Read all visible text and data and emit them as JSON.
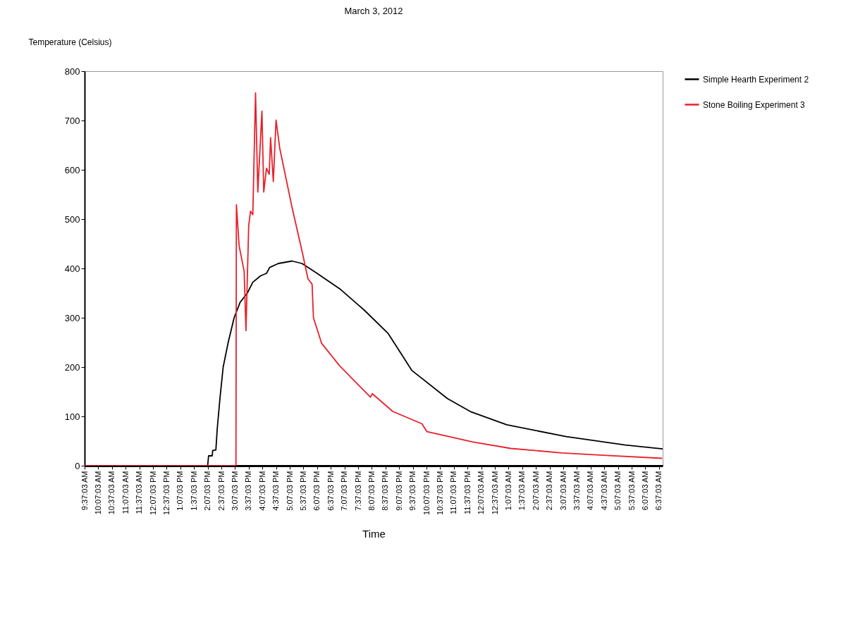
{
  "chart_data": {
    "type": "line",
    "title": "March 3, 2012",
    "xlabel": "Time",
    "ylabel": "Temperature (Celsius)",
    "xlim": [
      "2012-03-03T09:37:03",
      "2012-03-04T06:45"
    ],
    "ylim": [
      0,
      800
    ],
    "yticks": [
      0,
      100,
      200,
      300,
      400,
      500,
      600,
      700,
      800
    ],
    "xticks": [
      {
        "value": "2012-03-03T09:37:03",
        "label": "9:37:03 AM"
      },
      {
        "value": "2012-03-03T10:07:03",
        "label": "10:07:03 AM"
      },
      {
        "value": "2012-03-03T10:37:03",
        "label": "10:37:03 AM"
      },
      {
        "value": "2012-03-03T11:07:03",
        "label": "11:07:03 AM"
      },
      {
        "value": "2012-03-03T11:37:03",
        "label": "11:37:03 AM"
      },
      {
        "value": "2012-03-03T12:07:03",
        "label": "12:07:03 PM"
      },
      {
        "value": "2012-03-03T12:37:03",
        "label": "12:37:03 PM"
      },
      {
        "value": "2012-03-03T13:07:03",
        "label": "1:07:03 PM"
      },
      {
        "value": "2012-03-03T13:37:03",
        "label": "1:37:03 PM"
      },
      {
        "value": "2012-03-03T14:07:03",
        "label": "2:07:03 PM"
      },
      {
        "value": "2012-03-03T14:37:03",
        "label": "2:37:03 PM"
      },
      {
        "value": "2012-03-03T15:07:03",
        "label": "3:07:03 PM"
      },
      {
        "value": "2012-03-03T15:37:03",
        "label": "3:37:03 PM"
      },
      {
        "value": "2012-03-03T16:07:03",
        "label": "4:07:03 PM"
      },
      {
        "value": "2012-03-03T16:37:03",
        "label": "4:37:03 PM"
      },
      {
        "value": "2012-03-03T17:07:03",
        "label": "5:07:03 PM"
      },
      {
        "value": "2012-03-03T17:37:03",
        "label": "5:37:03 PM"
      },
      {
        "value": "2012-03-03T18:07:03",
        "label": "6:07:03 PM"
      },
      {
        "value": "2012-03-03T18:37:03",
        "label": "6:37:03 PM"
      },
      {
        "value": "2012-03-03T19:07:03",
        "label": "7:07:03 PM"
      },
      {
        "value": "2012-03-03T19:37:03",
        "label": "7:37:03 PM"
      },
      {
        "value": "2012-03-03T20:07:03",
        "label": "8:07:03 PM"
      },
      {
        "value": "2012-03-03T20:37:03",
        "label": "8:37:03 PM"
      },
      {
        "value": "2012-03-03T21:07:03",
        "label": "9:07:03 PM"
      },
      {
        "value": "2012-03-03T21:37:03",
        "label": "9:37:03 PM"
      },
      {
        "value": "2012-03-03T22:07:03",
        "label": "10:07:03 PM"
      },
      {
        "value": "2012-03-03T22:37:03",
        "label": "10:37:03 PM"
      },
      {
        "value": "2012-03-03T23:07:03",
        "label": "11:07:03 PM"
      },
      {
        "value": "2012-03-03T23:37:03",
        "label": "11:37:03 PM"
      },
      {
        "value": "2012-03-04T00:07:03",
        "label": "12:07:03 AM"
      },
      {
        "value": "2012-03-04T00:37:03",
        "label": "12:37:03 AM"
      },
      {
        "value": "2012-03-04T01:07:03",
        "label": "1:07:03 AM"
      },
      {
        "value": "2012-03-04T01:37:03",
        "label": "1:37:03 AM"
      },
      {
        "value": "2012-03-04T02:07:03",
        "label": "2:07:03 AM"
      },
      {
        "value": "2012-03-04T02:37:03",
        "label": "2:37:03 AM"
      },
      {
        "value": "2012-03-04T03:07:03",
        "label": "3:07:03 AM"
      },
      {
        "value": "2012-03-04T03:37:03",
        "label": "3:37:03 AM"
      },
      {
        "value": "2012-03-04T04:07:03",
        "label": "4:07:03 AM"
      },
      {
        "value": "2012-03-04T04:37:03",
        "label": "4:37:03 AM"
      },
      {
        "value": "2012-03-04T05:07:03",
        "label": "5:07:03 AM"
      },
      {
        "value": "2012-03-04T05:37:03",
        "label": "5:37:03 AM"
      },
      {
        "value": "2012-03-04T06:07:03",
        "label": "6:07:03 AM"
      },
      {
        "value": "2012-03-04T06:37:03",
        "label": "6:37:03 AM"
      }
    ],
    "legend": "right",
    "series": [
      {
        "name": "Simple Hearth Experiment 2",
        "color": "#000000",
        "x": [
          "2012-03-03T09:37:03",
          "2012-03-03T14:07",
          "2012-03-03T14:09",
          "2012-03-03T14:17",
          "2012-03-03T14:18",
          "2012-03-03T14:25",
          "2012-03-03T14:28",
          "2012-03-03T14:34",
          "2012-03-03T14:41",
          "2012-03-03T14:52",
          "2012-03-03T15:05",
          "2012-03-03T15:18",
          "2012-03-03T15:34",
          "2012-03-03T15:46",
          "2012-03-03T16:03",
          "2012-03-03T16:16",
          "2012-03-03T16:23",
          "2012-03-03T16:42",
          "2012-03-03T17:12",
          "2012-03-03T17:34",
          "2012-03-03T18:07",
          "2012-03-03T18:59",
          "2012-03-03T19:51",
          "2012-03-03T20:43",
          "2012-03-03T21:35",
          "2012-03-03T22:53",
          "2012-03-03T23:45",
          "2012-03-04T01:03",
          "2012-03-04T03:13",
          "2012-03-04T05:23",
          "2012-03-04T06:45"
        ],
        "values": [
          0,
          0,
          20,
          20,
          31,
          32,
          75,
          137,
          200,
          250,
          300,
          331,
          350,
          372,
          385,
          390,
          402,
          410,
          415,
          410,
          390,
          357,
          315,
          268,
          193,
          136,
          109,
          83,
          59,
          42,
          34
        ]
      },
      {
        "name": "Stone Boiling Experiment 3",
        "color": "#e8202a",
        "x": [
          "2012-03-03T09:37:03",
          "2012-03-03T15:09",
          "2012-03-03T15:10",
          "2012-03-03T15:16",
          "2012-03-03T15:27",
          "2012-03-03T15:31",
          "2012-03-03T15:37",
          "2012-03-03T15:41",
          "2012-03-03T15:46",
          "2012-03-03T15:52",
          "2012-03-03T15:57",
          "2012-03-03T16:06",
          "2012-03-03T16:10",
          "2012-03-03T16:16",
          "2012-03-03T16:22",
          "2012-03-03T16:25",
          "2012-03-03T16:31",
          "2012-03-03T16:37",
          "2012-03-03T16:45",
          "2012-03-03T17:12",
          "2012-03-03T17:34",
          "2012-03-03T17:47",
          "2012-03-03T17:56",
          "2012-03-03T17:59",
          "2012-03-03T18:17",
          "2012-03-03T18:31",
          "2012-03-03T18:56",
          "2012-03-03T20:04",
          "2012-03-03T20:08",
          "2012-03-03T20:53",
          "2012-03-03T21:57",
          "2012-03-03T22:08",
          "2012-03-03T23:49",
          "2012-03-04T01:12",
          "2012-03-04T03:04",
          "2012-03-04T04:41",
          "2012-03-04T06:44"
        ],
        "values": [
          0,
          0,
          529,
          446,
          394,
          274,
          487,
          516,
          509,
          756,
          555,
          719,
          555,
          603,
          591,
          665,
          576,
          701,
          644,
          524,
          435,
          379,
          368,
          300,
          248,
          232,
          203,
          139,
          146,
          110,
          85,
          69,
          48,
          35,
          26,
          21,
          15
        ]
      }
    ]
  }
}
